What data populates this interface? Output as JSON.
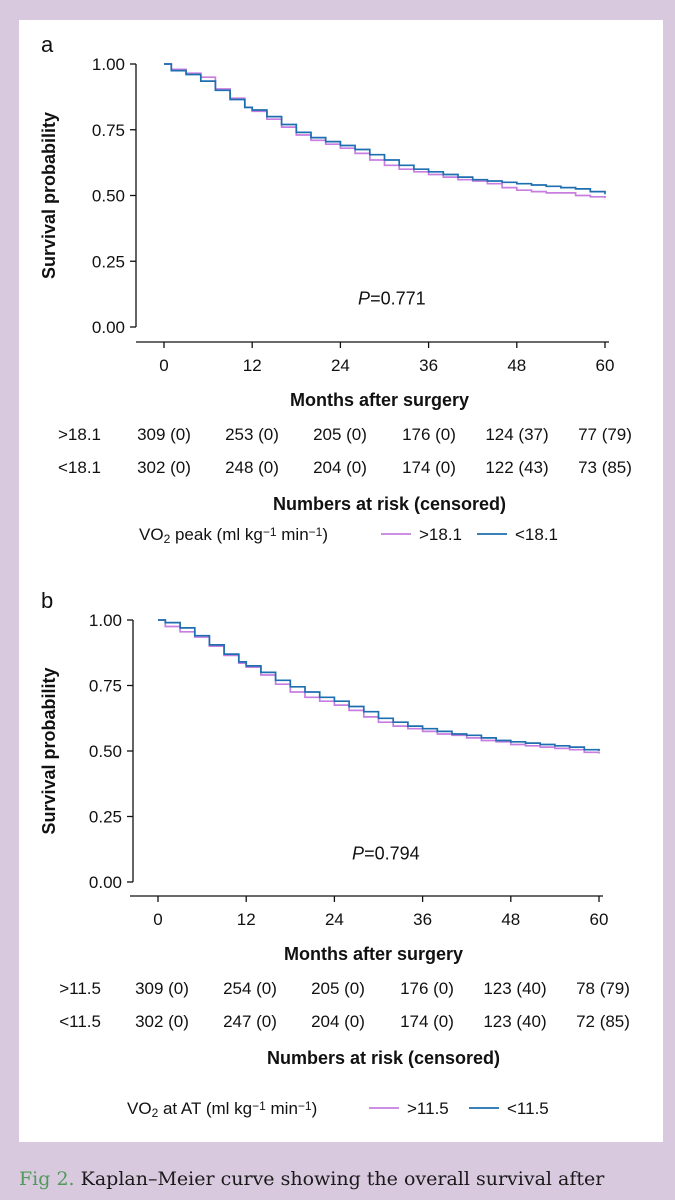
{
  "caption": {
    "label": "Fig 2.",
    "text": "Kaplan–Meier curve showing the overall survival after"
  },
  "colors": {
    "series_1": "#c77ee0",
    "series_2": "#1e6fb0",
    "background": "#d8c9df"
  },
  "chart_data": [
    {
      "panel": "a",
      "type": "line",
      "step": true,
      "xlabel": "Months after surgery",
      "ylabel": "Survival probability",
      "xticks": [
        0,
        12,
        24,
        36,
        48,
        60
      ],
      "yticks": [
        "1.00",
        "0.75",
        "0.50",
        "0.25",
        "0.00"
      ],
      "xlim": [
        0,
        60
      ],
      "ylim": [
        0,
        1
      ],
      "annotation": "=0.771",
      "annotation_prefix": "P",
      "risk_table": {
        "title": "Numbers at risk (censored)",
        "rows": [
          {
            "label": ">18.1",
            "values": [
              "309 (0)",
              "253 (0)",
              "205 (0)",
              "176 (0)",
              "124 (37)",
              "77 (79)"
            ]
          },
          {
            "label": "<18.1",
            "values": [
              "302 (0)",
              "248 (0)",
              "204 (0)",
              "174 (0)",
              "122 (43)",
              "73 (85)"
            ]
          }
        ]
      },
      "legend": {
        "title_pre": "VO",
        "title_sub": "2",
        "title_mid": " peak (ml kg",
        "title_sup1": "−1",
        "title_mid2": " min",
        "title_sup2": "−1",
        "title_post": ")",
        "entries": [
          ">18.1",
          "<18.1"
        ]
      },
      "series": [
        {
          "name": ">18.1",
          "color": "#c77ee0",
          "x": [
            0,
            1,
            3,
            5,
            7,
            9,
            11,
            12,
            14,
            16,
            18,
            20,
            22,
            24,
            26,
            28,
            30,
            32,
            34,
            36,
            38,
            40,
            42,
            44,
            46,
            48,
            50,
            52,
            54,
            56,
            58,
            60
          ],
          "y": [
            1.0,
            0.98,
            0.965,
            0.95,
            0.905,
            0.87,
            0.835,
            0.82,
            0.79,
            0.76,
            0.73,
            0.71,
            0.695,
            0.68,
            0.66,
            0.635,
            0.615,
            0.6,
            0.59,
            0.58,
            0.57,
            0.56,
            0.555,
            0.545,
            0.53,
            0.52,
            0.515,
            0.51,
            0.51,
            0.5,
            0.495,
            0.49
          ]
        },
        {
          "name": "<18.1",
          "color": "#1e6fb0",
          "x": [
            0,
            1,
            3,
            5,
            7,
            9,
            11,
            12,
            14,
            16,
            18,
            20,
            22,
            24,
            26,
            28,
            30,
            32,
            34,
            36,
            38,
            40,
            42,
            44,
            46,
            48,
            50,
            52,
            54,
            56,
            58,
            60
          ],
          "y": [
            1.0,
            0.975,
            0.96,
            0.935,
            0.9,
            0.865,
            0.835,
            0.825,
            0.8,
            0.77,
            0.74,
            0.72,
            0.705,
            0.69,
            0.675,
            0.655,
            0.635,
            0.615,
            0.6,
            0.59,
            0.58,
            0.57,
            0.56,
            0.555,
            0.55,
            0.545,
            0.54,
            0.535,
            0.53,
            0.525,
            0.515,
            0.505
          ]
        }
      ]
    },
    {
      "panel": "b",
      "type": "line",
      "step": true,
      "xlabel": "Months after surgery",
      "ylabel": "Survival probability",
      "xticks": [
        0,
        12,
        24,
        36,
        48,
        60
      ],
      "yticks": [
        "1.00",
        "0.75",
        "0.50",
        "0.25",
        "0.00"
      ],
      "xlim": [
        0,
        60
      ],
      "ylim": [
        0,
        1
      ],
      "annotation": "=0.794",
      "annotation_prefix": "P",
      "risk_table": {
        "title": "Numbers at risk (censored)",
        "rows": [
          {
            "label": ">11.5",
            "values": [
              "309 (0)",
              "254 (0)",
              "205 (0)",
              "176 (0)",
              "123 (40)",
              "78 (79)"
            ]
          },
          {
            "label": "<11.5",
            "values": [
              "302 (0)",
              "247 (0)",
              "204 (0)",
              "174 (0)",
              "123 (40)",
              "72 (85)"
            ]
          }
        ]
      },
      "legend": {
        "title_pre": "VO",
        "title_sub": "2",
        "title_mid": " at AT (ml kg",
        "title_sup1": "−1",
        "title_mid2": " min",
        "title_sup2": "−1",
        "title_post": ")",
        "entries": [
          ">11.5",
          "<11.5"
        ]
      },
      "series": [
        {
          "name": ">11.5",
          "color": "#c77ee0",
          "x": [
            0,
            1,
            3,
            5,
            7,
            9,
            11,
            12,
            14,
            16,
            18,
            20,
            22,
            24,
            26,
            28,
            30,
            32,
            34,
            36,
            38,
            40,
            42,
            44,
            46,
            48,
            50,
            52,
            54,
            56,
            58,
            60
          ],
          "y": [
            1.0,
            0.975,
            0.955,
            0.935,
            0.9,
            0.865,
            0.835,
            0.82,
            0.79,
            0.755,
            0.725,
            0.705,
            0.69,
            0.675,
            0.655,
            0.63,
            0.61,
            0.595,
            0.585,
            0.575,
            0.565,
            0.56,
            0.55,
            0.54,
            0.535,
            0.525,
            0.52,
            0.515,
            0.51,
            0.505,
            0.495,
            0.49
          ]
        },
        {
          "name": "<11.5",
          "color": "#1e6fb0",
          "x": [
            0,
            1,
            3,
            5,
            7,
            9,
            11,
            12,
            14,
            16,
            18,
            20,
            22,
            24,
            26,
            28,
            30,
            32,
            34,
            36,
            38,
            40,
            42,
            44,
            46,
            48,
            50,
            52,
            54,
            56,
            58,
            60
          ],
          "y": [
            1.0,
            0.99,
            0.97,
            0.94,
            0.905,
            0.87,
            0.84,
            0.825,
            0.8,
            0.77,
            0.745,
            0.725,
            0.705,
            0.69,
            0.67,
            0.65,
            0.625,
            0.61,
            0.595,
            0.585,
            0.575,
            0.565,
            0.56,
            0.55,
            0.54,
            0.535,
            0.53,
            0.525,
            0.52,
            0.515,
            0.505,
            0.5
          ]
        }
      ]
    }
  ]
}
